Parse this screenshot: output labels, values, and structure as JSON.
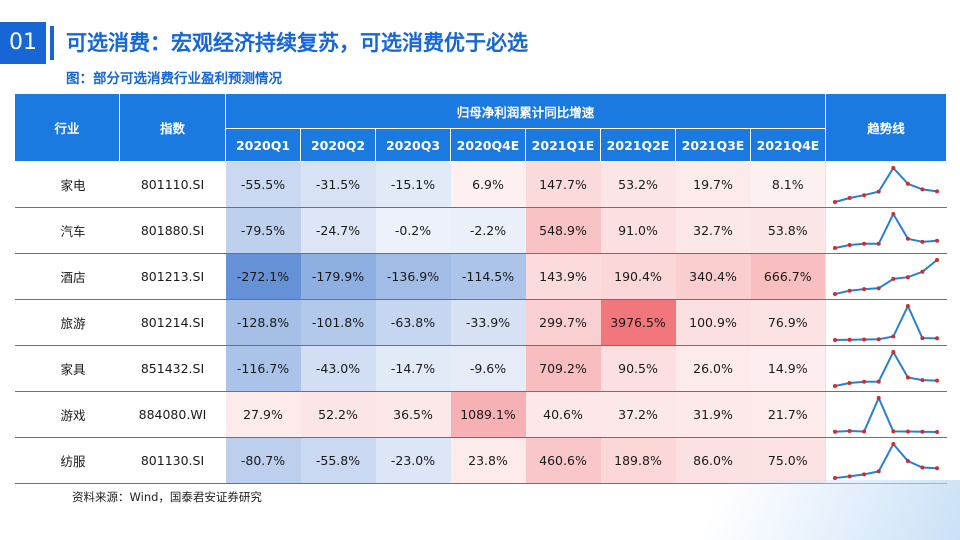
{
  "header": {
    "section_number": "01",
    "title": "可选消费：宏观经济持续复苏，可选消费优于必选",
    "subtitle": "图：部分可选消费行业盈利预测情况"
  },
  "table": {
    "col_industry": "行业",
    "col_index": "指数",
    "group_header": "归母净利润累计同比增速",
    "col_trend": "趋势线",
    "quarters": [
      "2020Q1",
      "2020Q2",
      "2020Q3",
      "2020Q4E",
      "2021Q1E",
      "2021Q2E",
      "2021Q3E",
      "2021Q4E"
    ],
    "rows": [
      {
        "industry": "家电",
        "index": "801110.SI",
        "values": [
          "-55.5%",
          "-31.5%",
          "-15.1%",
          "6.9%",
          "147.7%",
          "53.2%",
          "19.7%",
          "8.1%"
        ],
        "nums": [
          -55.5,
          -31.5,
          -15.1,
          6.9,
          147.7,
          53.2,
          19.7,
          8.1
        ]
      },
      {
        "industry": "汽车",
        "index": "801880.SI",
        "values": [
          "-79.5%",
          "-24.7%",
          "-0.2%",
          "-2.2%",
          "548.9%",
          "91.0%",
          "32.7%",
          "53.8%"
        ],
        "nums": [
          -79.5,
          -24.7,
          -0.2,
          -2.2,
          548.9,
          91.0,
          32.7,
          53.8
        ]
      },
      {
        "industry": "酒店",
        "index": "801213.SI",
        "values": [
          "-272.1%",
          "-179.9%",
          "-136.9%",
          "-114.5%",
          "143.9%",
          "190.4%",
          "340.4%",
          "666.7%"
        ],
        "nums": [
          -272.1,
          -179.9,
          -136.9,
          -114.5,
          143.9,
          190.4,
          340.4,
          666.7
        ]
      },
      {
        "industry": "旅游",
        "index": "801214.SI",
        "values": [
          "-128.8%",
          "-101.8%",
          "-63.8%",
          "-33.9%",
          "299.7%",
          "3976.5%",
          "100.9%",
          "76.9%"
        ],
        "nums": [
          -128.8,
          -101.8,
          -63.8,
          -33.9,
          299.7,
          3976.5,
          100.9,
          76.9
        ]
      },
      {
        "industry": "家具",
        "index": "851432.SI",
        "values": [
          "-116.7%",
          "-43.0%",
          "-14.7%",
          "-9.6%",
          "709.2%",
          "90.5%",
          "26.0%",
          "14.9%"
        ],
        "nums": [
          -116.7,
          -43.0,
          -14.7,
          -9.6,
          709.2,
          90.5,
          26.0,
          14.9
        ]
      },
      {
        "industry": "游戏",
        "index": "884080.WI",
        "values": [
          "27.9%",
          "52.2%",
          "36.5%",
          "1089.1%",
          "40.6%",
          "37.2%",
          "31.9%",
          "21.7%"
        ],
        "nums": [
          27.9,
          52.2,
          36.5,
          1089.1,
          40.6,
          37.2,
          31.9,
          21.7
        ]
      },
      {
        "industry": "纺服",
        "index": "801130.SI",
        "values": [
          "-80.7%",
          "-55.8%",
          "-23.0%",
          "23.8%",
          "460.6%",
          "189.8%",
          "86.0%",
          "75.0%"
        ],
        "nums": [
          -80.7,
          -55.8,
          -23.0,
          23.8,
          460.6,
          189.8,
          86.0,
          75.0
        ]
      }
    ]
  },
  "source": "资料来源：Wind，国泰君安证券研究",
  "colors": {
    "accent": "#1766d6",
    "header_bg": "#1b7ae0",
    "neg_max": "#4a7fcf",
    "pos_max": "#f0686e",
    "spark_line": "#2b7fcf",
    "spark_dot": "#d62a2a"
  }
}
